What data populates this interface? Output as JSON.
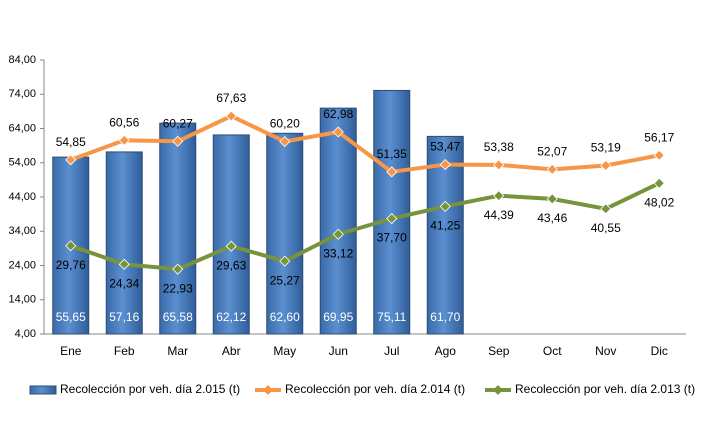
{
  "chart_data": {
    "type": "bar",
    "categories": [
      "Ene",
      "Feb",
      "Mar",
      "Abr",
      "May",
      "Jun",
      "Jul",
      "Ago",
      "Sep",
      "Oct",
      "Nov",
      "Dic"
    ],
    "ylim": [
      4,
      84
    ],
    "yticks": [
      {
        "value": 4,
        "label": "4,00"
      },
      {
        "value": 14,
        "label": "14,00"
      },
      {
        "value": 24,
        "label": "24,00"
      },
      {
        "value": 34,
        "label": "34,00"
      },
      {
        "value": 44,
        "label": "44,00"
      },
      {
        "value": 54,
        "label": "54,00"
      },
      {
        "value": 64,
        "label": "64,00"
      },
      {
        "value": 74,
        "label": "74,00"
      },
      {
        "value": 84,
        "label": "84,00"
      }
    ],
    "legend": "bottom",
    "series": [
      {
        "name": "Recolección por veh. día 2.015 (t)",
        "type": "bar",
        "color": "#4f81bd",
        "values": [
          55.65,
          57.16,
          65.58,
          62.12,
          62.6,
          69.95,
          75.11,
          61.7,
          null,
          null,
          null,
          null
        ],
        "value_labels": [
          "55,65",
          "57,16",
          "65,58",
          "62,12",
          "62,60",
          "69,95",
          "75,11",
          "61,70",
          null,
          null,
          null,
          null
        ]
      },
      {
        "name": "Recolección por veh. día 2.014 (t)",
        "type": "line",
        "color": "#f79646",
        "values": [
          54.85,
          60.56,
          60.27,
          67.63,
          60.2,
          62.98,
          51.35,
          53.47,
          53.38,
          52.07,
          53.19,
          56.17
        ],
        "value_labels": [
          "54,85",
          "60,56",
          "60,27",
          "67,63",
          "60,20",
          "62,98",
          "51,35",
          "53,47",
          "53,38",
          "52,07",
          "53,19",
          "56,17"
        ]
      },
      {
        "name": "Recolección por veh. día 2.013 (t)",
        "type": "line",
        "color": "#77933c",
        "values": [
          29.76,
          24.34,
          22.93,
          29.63,
          25.27,
          33.12,
          37.7,
          41.25,
          44.39,
          43.46,
          40.55,
          48.02
        ],
        "value_labels": [
          "29,76",
          "24,34",
          "22,93",
          "29,63",
          "25,27",
          "33,12",
          "37,70",
          "41,25",
          "44,39",
          "43,46",
          "40,55",
          "48,02"
        ]
      }
    ]
  }
}
